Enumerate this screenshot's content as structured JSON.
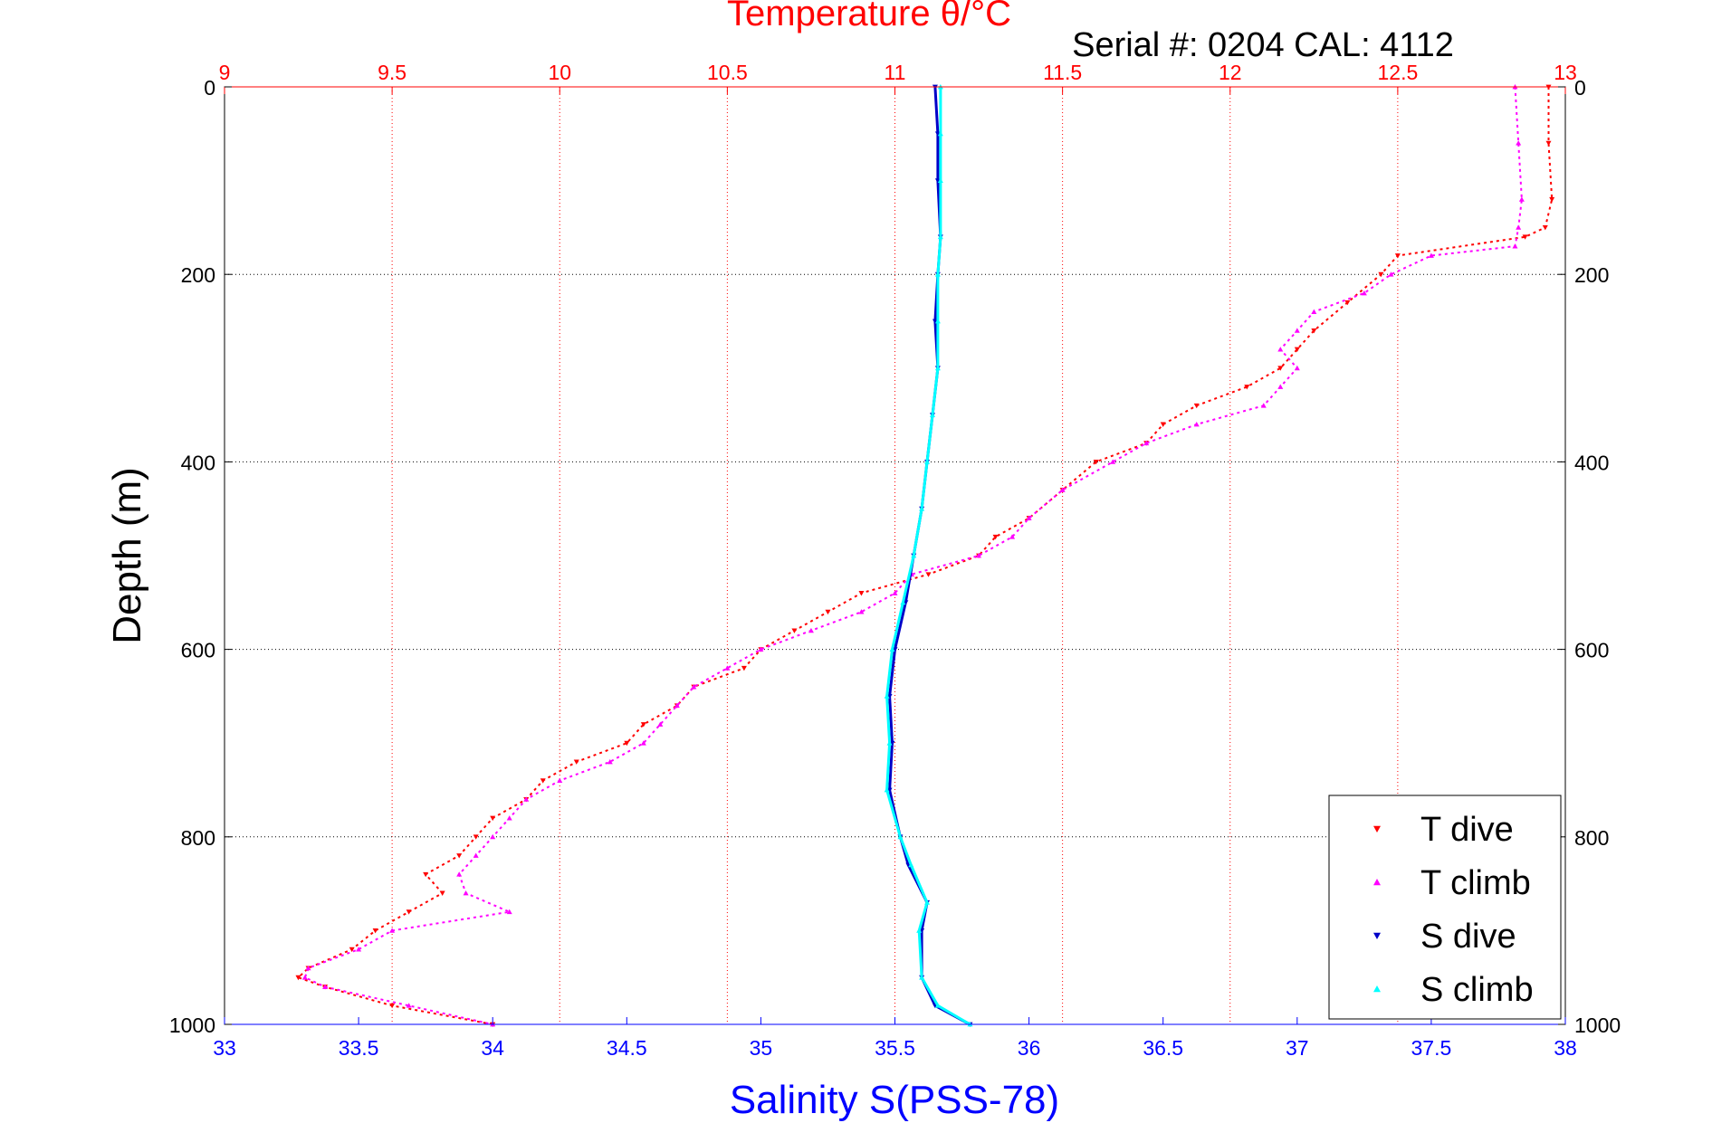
{
  "chart_data": {
    "type": "scatter",
    "title": "Temperature θ/°C",
    "subtitle": "Serial #: 0204  CAL: 4112",
    "ylabel": "Depth (m)",
    "xlabel": "Salinity S(PSS-78)",
    "ylim": [
      0,
      1000
    ],
    "y_reversed": true,
    "y_ticks": [
      "0",
      "200",
      "400",
      "600",
      "800",
      "1000"
    ],
    "temperature_axis": {
      "position": "top",
      "color": "#ff0000",
      "lim": [
        9,
        13
      ],
      "ticks": [
        "9",
        "9.5",
        "10",
        "10.5",
        "11",
        "11.5",
        "12",
        "12.5",
        "13"
      ]
    },
    "salinity_axis": {
      "position": "bottom",
      "color": "#0000ff",
      "lim": [
        33,
        38
      ],
      "ticks": [
        "33",
        "33.5",
        "34",
        "34.5",
        "35",
        "35.5",
        "36",
        "36.5",
        "37",
        "37.5",
        "38"
      ]
    },
    "grid": "dotted vertical lines at temperature ticks, dotted horizontal lines at depth ticks",
    "legend": {
      "position": "bottom-right",
      "entries": [
        "T dive",
        "T climb",
        "S dive",
        "S climb"
      ]
    },
    "series": [
      {
        "name": "T dive",
        "axis": "temperature",
        "color": "#ff0000",
        "marker": "triangle-down",
        "points": [
          [
            12.95,
            0
          ],
          [
            12.95,
            60
          ],
          [
            12.96,
            120
          ],
          [
            12.94,
            150
          ],
          [
            12.88,
            160
          ],
          [
            12.5,
            180
          ],
          [
            12.45,
            200
          ],
          [
            12.35,
            230
          ],
          [
            12.25,
            260
          ],
          [
            12.2,
            280
          ],
          [
            12.15,
            300
          ],
          [
            12.05,
            320
          ],
          [
            11.9,
            340
          ],
          [
            11.8,
            360
          ],
          [
            11.75,
            380
          ],
          [
            11.6,
            400
          ],
          [
            11.5,
            430
          ],
          [
            11.4,
            460
          ],
          [
            11.3,
            480
          ],
          [
            11.25,
            500
          ],
          [
            11.1,
            520
          ],
          [
            10.9,
            540
          ],
          [
            10.8,
            560
          ],
          [
            10.7,
            580
          ],
          [
            10.6,
            600
          ],
          [
            10.55,
            620
          ],
          [
            10.4,
            640
          ],
          [
            10.35,
            660
          ],
          [
            10.25,
            680
          ],
          [
            10.2,
            700
          ],
          [
            10.05,
            720
          ],
          [
            9.95,
            740
          ],
          [
            9.9,
            760
          ],
          [
            9.8,
            780
          ],
          [
            9.75,
            800
          ],
          [
            9.7,
            820
          ],
          [
            9.6,
            840
          ],
          [
            9.65,
            860
          ],
          [
            9.55,
            880
          ],
          [
            9.45,
            900
          ],
          [
            9.38,
            920
          ],
          [
            9.25,
            940
          ],
          [
            9.22,
            950
          ],
          [
            9.3,
            960
          ],
          [
            9.5,
            980
          ],
          [
            9.8,
            1000
          ]
        ]
      },
      {
        "name": "T climb",
        "axis": "temperature",
        "color": "#ff00ff",
        "marker": "triangle-up",
        "points": [
          [
            12.85,
            0
          ],
          [
            12.86,
            60
          ],
          [
            12.87,
            120
          ],
          [
            12.86,
            150
          ],
          [
            12.85,
            170
          ],
          [
            12.6,
            180
          ],
          [
            12.48,
            200
          ],
          [
            12.4,
            220
          ],
          [
            12.25,
            240
          ],
          [
            12.2,
            260
          ],
          [
            12.15,
            280
          ],
          [
            12.2,
            300
          ],
          [
            12.15,
            320
          ],
          [
            12.1,
            340
          ],
          [
            11.9,
            360
          ],
          [
            11.75,
            380
          ],
          [
            11.65,
            400
          ],
          [
            11.5,
            430
          ],
          [
            11.4,
            460
          ],
          [
            11.35,
            480
          ],
          [
            11.25,
            500
          ],
          [
            11.05,
            520
          ],
          [
            11.0,
            540
          ],
          [
            10.9,
            560
          ],
          [
            10.75,
            580
          ],
          [
            10.6,
            600
          ],
          [
            10.5,
            620
          ],
          [
            10.4,
            640
          ],
          [
            10.35,
            660
          ],
          [
            10.3,
            680
          ],
          [
            10.25,
            700
          ],
          [
            10.15,
            720
          ],
          [
            10.0,
            740
          ],
          [
            9.9,
            760
          ],
          [
            9.85,
            780
          ],
          [
            9.8,
            800
          ],
          [
            9.75,
            820
          ],
          [
            9.7,
            840
          ],
          [
            9.72,
            860
          ],
          [
            9.85,
            880
          ],
          [
            9.5,
            900
          ],
          [
            9.4,
            920
          ],
          [
            9.25,
            940
          ],
          [
            9.24,
            950
          ],
          [
            9.3,
            960
          ],
          [
            9.55,
            980
          ],
          [
            9.8,
            1000
          ]
        ]
      },
      {
        "name": "S dive",
        "axis": "salinity",
        "color": "#0000c8",
        "marker": "triangle-down",
        "points": [
          [
            35.65,
            0
          ],
          [
            35.66,
            50
          ],
          [
            35.66,
            100
          ],
          [
            35.67,
            160
          ],
          [
            35.66,
            200
          ],
          [
            35.65,
            250
          ],
          [
            35.66,
            300
          ],
          [
            35.64,
            350
          ],
          [
            35.62,
            400
          ],
          [
            35.6,
            450
          ],
          [
            35.57,
            500
          ],
          [
            35.54,
            550
          ],
          [
            35.5,
            600
          ],
          [
            35.48,
            650
          ],
          [
            35.49,
            700
          ],
          [
            35.48,
            750
          ],
          [
            35.52,
            800
          ],
          [
            35.55,
            830
          ],
          [
            35.62,
            870
          ],
          [
            35.6,
            900
          ],
          [
            35.6,
            950
          ],
          [
            35.65,
            980
          ],
          [
            35.78,
            1000
          ]
        ]
      },
      {
        "name": "S climb",
        "axis": "salinity",
        "color": "#00ffff",
        "marker": "triangle-up",
        "points": [
          [
            35.67,
            0
          ],
          [
            35.67,
            50
          ],
          [
            35.67,
            100
          ],
          [
            35.67,
            160
          ],
          [
            35.66,
            200
          ],
          [
            35.66,
            250
          ],
          [
            35.66,
            300
          ],
          [
            35.64,
            350
          ],
          [
            35.62,
            400
          ],
          [
            35.6,
            450
          ],
          [
            35.57,
            500
          ],
          [
            35.53,
            550
          ],
          [
            35.49,
            600
          ],
          [
            35.47,
            650
          ],
          [
            35.48,
            700
          ],
          [
            35.47,
            750
          ],
          [
            35.52,
            800
          ],
          [
            35.56,
            830
          ],
          [
            35.62,
            870
          ],
          [
            35.59,
            900
          ],
          [
            35.6,
            950
          ],
          [
            35.66,
            980
          ],
          [
            35.78,
            1000
          ]
        ]
      }
    ]
  }
}
